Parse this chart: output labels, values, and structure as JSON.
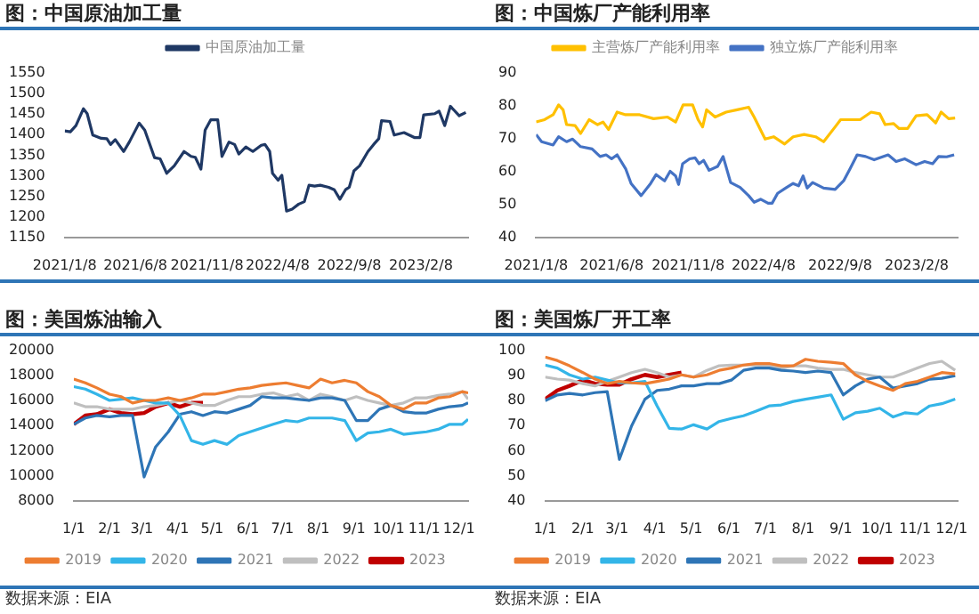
{
  "chart_data": [
    {
      "type": "line",
      "title": "图：中国原油加工量",
      "legend": "top",
      "xlim": [
        "2021-01-08",
        "2023-05-20"
      ],
      "xticks": [
        {
          "value": "2021-01-08",
          "label": "2021/1/8"
        },
        {
          "value": "2021-06-08",
          "label": "2021/6/8"
        },
        {
          "value": "2021-11-08",
          "label": "2021/11/8"
        },
        {
          "value": "2022-04-08",
          "label": "2022/4/8"
        },
        {
          "value": "2022-09-08",
          "label": "2022/9/8"
        },
        {
          "value": "2023-02-08",
          "label": "2023/2/8"
        }
      ],
      "ylim": [
        1150,
        1550
      ],
      "yticks": [
        1150,
        1200,
        1250,
        1300,
        1350,
        1400,
        1450,
        1500,
        1550
      ],
      "x": [
        "2021-01-08",
        "2021-01-20",
        "2021-02-01",
        "2021-02-17",
        "2021-02-25",
        "2021-03-09",
        "2021-03-27",
        "2021-04-08",
        "2021-04-16",
        "2021-04-26",
        "2021-05-14",
        "2021-05-26",
        "2021-06-16",
        "2021-06-28",
        "2021-07-19",
        "2021-07-31",
        "2021-08-14",
        "2021-08-30",
        "2021-09-20",
        "2021-10-05",
        "2021-10-14",
        "2021-10-26",
        "2021-11-04",
        "2021-11-16",
        "2021-12-01",
        "2021-12-10",
        "2021-12-25",
        "2022-01-06",
        "2022-01-15",
        "2022-01-30",
        "2022-02-14",
        "2022-03-04",
        "2022-03-12",
        "2022-03-22",
        "2022-03-28",
        "2022-04-09",
        "2022-04-17",
        "2022-04-27",
        "2022-05-09",
        "2022-05-23",
        "2022-06-04",
        "2022-06-14",
        "2022-06-26",
        "2022-07-08",
        "2022-07-26",
        "2022-08-07",
        "2022-08-19",
        "2022-08-31",
        "2022-09-08",
        "2022-09-18",
        "2022-09-30",
        "2022-10-18",
        "2022-10-30",
        "2022-11-10",
        "2022-11-16",
        "2022-12-04",
        "2022-12-13",
        "2023-01-03",
        "2023-01-25",
        "2023-02-06",
        "2023-02-14",
        "2023-03-10",
        "2023-03-19",
        "2023-03-31",
        "2023-04-12",
        "2023-05-01",
        "2023-05-15"
      ],
      "series": [
        {
          "name": "中国原油加工量",
          "color": "#1f3864",
          "values": [
            1409,
            1407,
            1422,
            1463,
            1451,
            1399,
            1391,
            1390,
            1376,
            1388,
            1359,
            1382,
            1428,
            1411,
            1344,
            1341,
            1306,
            1324,
            1359,
            1347,
            1345,
            1316,
            1411,
            1436,
            1436,
            1347,
            1382,
            1376,
            1353,
            1370,
            1359,
            1374,
            1376,
            1359,
            1306,
            1289,
            1301,
            1214,
            1219,
            1231,
            1237,
            1277,
            1275,
            1277,
            1272,
            1266,
            1243,
            1266,
            1272,
            1312,
            1324,
            1359,
            1376,
            1390,
            1434,
            1432,
            1399,
            1405,
            1393,
            1393,
            1448,
            1451,
            1457,
            1422,
            1469,
            1446,
            1454
          ]
        }
      ]
    },
    {
      "type": "line",
      "title": "图：中国炼厂产能利用率",
      "legend": "top",
      "xlim": [
        "2021-01-08",
        "2023-05-01"
      ],
      "xticks": [
        {
          "value": "2021-01-08",
          "label": "2021/1/8"
        },
        {
          "value": "2021-06-08",
          "label": "2021/6/8"
        },
        {
          "value": "2021-11-08",
          "label": "2021/11/8"
        },
        {
          "value": "2022-04-08",
          "label": "2022/4/8"
        },
        {
          "value": "2022-09-08",
          "label": "2022/9/8"
        },
        {
          "value": "2023-02-08",
          "label": "2023/2/8"
        }
      ],
      "ylim": [
        40,
        90
      ],
      "yticks": [
        40,
        50,
        60,
        70,
        80,
        90
      ],
      "series": [
        {
          "name": "主营炼厂产能利用率",
          "color": "#ffc000",
          "x": [
            "2021-01-08",
            "2021-01-25",
            "2021-02-11",
            "2021-02-22",
            "2021-03-03",
            "2021-03-10",
            "2021-03-27",
            "2021-04-07",
            "2021-04-24",
            "2021-05-11",
            "2021-05-22",
            "2021-06-02",
            "2021-06-19",
            "2021-07-06",
            "2021-08-03",
            "2021-08-31",
            "2021-09-28",
            "2021-10-14",
            "2021-10-29",
            "2021-11-17",
            "2021-11-28",
            "2021-12-07",
            "2021-12-15",
            "2022-01-01",
            "2022-01-23",
            "2022-02-14",
            "2022-03-09",
            "2022-03-20",
            "2022-04-11",
            "2022-04-28",
            "2022-05-20",
            "2022-06-06",
            "2022-06-28",
            "2022-07-21",
            "2022-08-06",
            "2022-08-29",
            "2022-09-09",
            "2022-10-18",
            "2022-11-09",
            "2022-11-26",
            "2022-12-07",
            "2022-12-24",
            "2023-01-04",
            "2023-01-21",
            "2023-02-07",
            "2023-03-01",
            "2023-03-18",
            "2023-03-29",
            "2023-04-13",
            "2023-04-26"
          ],
          "values": [
            75.1,
            75.8,
            77.3,
            80.3,
            78.8,
            74.3,
            74.0,
            71.6,
            75.8,
            74.3,
            75.1,
            72.8,
            78.1,
            77.3,
            77.3,
            76.1,
            76.6,
            75.1,
            80.3,
            80.3,
            75.8,
            73.6,
            78.8,
            76.6,
            78.1,
            78.8,
            79.6,
            76.6,
            69.9,
            70.6,
            68.4,
            70.6,
            71.3,
            70.6,
            69.1,
            73.6,
            75.8,
            75.8,
            78.1,
            77.6,
            74.3,
            74.6,
            73.1,
            73.1,
            77.0,
            77.3,
            74.8,
            78.1,
            76.1,
            76.3
          ]
        },
        {
          "name": "独立炼厂产能利用率",
          "color": "#4472c4",
          "x": [
            "2021-01-08",
            "2021-01-19",
            "2021-02-11",
            "2021-02-22",
            "2021-03-10",
            "2021-03-22",
            "2021-04-07",
            "2021-04-30",
            "2021-05-16",
            "2021-05-28",
            "2021-06-08",
            "2021-06-19",
            "2021-07-06",
            "2021-07-17",
            "2021-08-06",
            "2021-08-25",
            "2021-09-05",
            "2021-09-22",
            "2021-10-03",
            "2021-10-14",
            "2021-10-20",
            "2021-10-28",
            "2021-11-11",
            "2021-11-22",
            "2021-11-30",
            "2021-12-09",
            "2021-12-20",
            "2022-01-06",
            "2022-01-17",
            "2022-02-01",
            "2022-02-20",
            "2022-03-09",
            "2022-03-20",
            "2022-04-02",
            "2022-04-17",
            "2022-04-25",
            "2022-05-06",
            "2022-05-24",
            "2022-06-06",
            "2022-06-17",
            "2022-06-26",
            "2022-07-04",
            "2022-07-15",
            "2022-08-06",
            "2022-08-29",
            "2022-09-15",
            "2022-09-28",
            "2022-10-12",
            "2022-10-29",
            "2022-11-15",
            "2022-12-13",
            "2022-12-29",
            "2023-01-15",
            "2023-02-07",
            "2023-02-24",
            "2023-03-12",
            "2023-03-24",
            "2023-04-09",
            "2023-04-24"
          ],
          "values": [
            71.3,
            69.1,
            68.1,
            70.6,
            69.1,
            69.9,
            67.6,
            66.9,
            64.6,
            65.1,
            63.9,
            65.1,
            60.9,
            56.4,
            52.7,
            56.4,
            59.1,
            57.2,
            60.1,
            58.7,
            56.1,
            62.4,
            63.9,
            64.2,
            62.4,
            63.4,
            60.4,
            61.6,
            64.6,
            56.7,
            55.2,
            52.7,
            50.7,
            51.6,
            50.4,
            50.4,
            53.4,
            55.2,
            56.4,
            55.7,
            58.7,
            55.0,
            56.7,
            55.0,
            54.6,
            57.2,
            60.9,
            65.1,
            64.6,
            63.6,
            65.1,
            63.1,
            63.9,
            62.1,
            63.1,
            62.4,
            64.6,
            64.5,
            65.1
          ]
        }
      ]
    },
    {
      "type": "line",
      "title": "图：美国炼油输入",
      "legend": "bottom",
      "annotations": [
        "数据来源：EIA"
      ],
      "xlim": [
        "--01-01",
        "--12-09"
      ],
      "xticks": [
        {
          "value": "--01-01",
          "label": "1/1"
        },
        {
          "value": "--02-01",
          "label": "2/1"
        },
        {
          "value": "--03-01",
          "label": "3/1"
        },
        {
          "value": "--04-01",
          "label": "4/1"
        },
        {
          "value": "--05-01",
          "label": "5/1"
        },
        {
          "value": "--06-01",
          "label": "6/1"
        },
        {
          "value": "--07-01",
          "label": "7/1"
        },
        {
          "value": "--08-01",
          "label": "8/1"
        },
        {
          "value": "--09-01",
          "label": "9/1"
        },
        {
          "value": "--10-01",
          "label": "10/1"
        },
        {
          "value": "--11-01",
          "label": "11/1"
        },
        {
          "value": "--12-01",
          "label": "12/1"
        }
      ],
      "ylim": [
        8000,
        20000
      ],
      "yticks": [
        8000,
        10000,
        12000,
        14000,
        16000,
        18000,
        20000
      ],
      "x": [
        "--01-01",
        "--01-11",
        "--01-21",
        "--02-01",
        "--02-11",
        "--02-21",
        "--03-03",
        "--03-13",
        "--03-24",
        "--04-03",
        "--04-13",
        "--04-23",
        "--05-03",
        "--05-14",
        "--05-24",
        "--06-03",
        "--06-13",
        "--06-23",
        "--07-04",
        "--07-14",
        "--07-24",
        "--08-03",
        "--08-13",
        "--08-24",
        "--09-03",
        "--09-13",
        "--09-23",
        "--10-03",
        "--10-14",
        "--10-24",
        "--11-03",
        "--11-13",
        "--11-23",
        "--12-04",
        "--12-09"
      ],
      "series": [
        {
          "name": "2019",
          "color": "#ed7d31",
          "values": [
            17700,
            17400,
            17000,
            16500,
            16300,
            15800,
            16000,
            16000,
            16200,
            16000,
            16200,
            16500,
            16500,
            16700,
            16900,
            17000,
            17200,
            17300,
            17400,
            17200,
            17000,
            17700,
            17400,
            17600,
            17400,
            16700,
            16300,
            15600,
            15300,
            15800,
            15800,
            16200,
            16300,
            16700,
            16600
          ]
        },
        {
          "name": "2020",
          "color": "#33b5e8",
          "values": [
            17100,
            16900,
            16500,
            16000,
            16100,
            16200,
            16000,
            15800,
            15800,
            14800,
            12800,
            12500,
            12800,
            12500,
            13200,
            13500,
            13800,
            14100,
            14400,
            14300,
            14600,
            14600,
            14600,
            14400,
            12800,
            13400,
            13500,
            13700,
            13300,
            13400,
            13500,
            13700,
            14100,
            14100,
            14500
          ]
        },
        {
          "name": "2021",
          "color": "#2e75b6",
          "values": [
            14100,
            14600,
            14800,
            14700,
            14800,
            14800,
            9900,
            12300,
            13500,
            14900,
            15100,
            14800,
            15100,
            15000,
            15300,
            15600,
            16300,
            16200,
            16200,
            16100,
            16000,
            16200,
            16200,
            16000,
            14400,
            14400,
            15300,
            15600,
            15100,
            15000,
            15000,
            15300,
            15500,
            15600,
            15800
          ]
        },
        {
          "name": "2022",
          "color": "#bfbfbf",
          "values": [
            15800,
            15500,
            15500,
            15300,
            15300,
            15300,
            15500,
            15600,
            15800,
            16000,
            15800,
            15600,
            15600,
            16000,
            16300,
            16300,
            16500,
            16600,
            16300,
            16500,
            16000,
            16500,
            16300,
            16000,
            16300,
            16000,
            15800,
            15600,
            15800,
            16200,
            16200,
            16400,
            16500,
            16700,
            16100
          ]
        },
        {
          "name": "2023",
          "color": "#c00000",
          "values": [
            14100,
            14800,
            14900,
            15300,
            15000,
            14900,
            15000,
            15500,
            15800,
            15500,
            15800,
            15800,
            null,
            null,
            null,
            null,
            null,
            null,
            null,
            null,
            null,
            null,
            null,
            null,
            null,
            null,
            null,
            null,
            null,
            null,
            null,
            null,
            null,
            null,
            null
          ]
        }
      ]
    },
    {
      "type": "line",
      "title": "图：美国炼厂开工率",
      "legend": "bottom",
      "annotations": [
        "数据来源：EIA"
      ],
      "xlim": [
        "--01-01",
        "--12-06"
      ],
      "xticks": [
        {
          "value": "--01-01",
          "label": "1/1"
        },
        {
          "value": "--02-01",
          "label": "2/1"
        },
        {
          "value": "--03-01",
          "label": "3/1"
        },
        {
          "value": "--04-01",
          "label": "4/1"
        },
        {
          "value": "--05-01",
          "label": "5/1"
        },
        {
          "value": "--06-01",
          "label": "6/1"
        },
        {
          "value": "--07-01",
          "label": "7/1"
        },
        {
          "value": "--08-01",
          "label": "8/1"
        },
        {
          "value": "--09-01",
          "label": "9/1"
        },
        {
          "value": "--10-01",
          "label": "10/1"
        },
        {
          "value": "--11-01",
          "label": "11/1"
        },
        {
          "value": "--12-01",
          "label": "12/1"
        }
      ],
      "ylim": [
        40,
        100
      ],
      "yticks": [
        40,
        50,
        60,
        70,
        80,
        90,
        100
      ],
      "x": [
        "--01-01",
        "--01-11",
        "--01-21",
        "--02-01",
        "--02-11",
        "--02-21",
        "--03-03",
        "--03-13",
        "--03-24",
        "--04-03",
        "--04-13",
        "--04-23",
        "--05-03",
        "--05-14",
        "--05-24",
        "--06-03",
        "--06-13",
        "--06-23",
        "--07-04",
        "--07-14",
        "--07-24",
        "--08-03",
        "--08-13",
        "--08-24",
        "--09-03",
        "--09-13",
        "--09-23",
        "--10-03",
        "--10-14",
        "--10-24",
        "--11-03",
        "--11-13",
        "--11-23",
        "--12-04"
      ],
      "series": [
        {
          "name": "2019",
          "color": "#ed7d31",
          "values": [
            97.3,
            95.9,
            93.8,
            91.1,
            88.5,
            86.7,
            87.6,
            87.0,
            86.7,
            87.6,
            88.5,
            90.2,
            89.3,
            90.2,
            92.0,
            92.9,
            94.1,
            94.7,
            94.7,
            93.8,
            93.8,
            96.4,
            95.6,
            95.2,
            94.7,
            90.2,
            87.6,
            85.8,
            84.0,
            86.7,
            87.6,
            89.3,
            91.1,
            90.6
          ]
        },
        {
          "name": "2020",
          "color": "#33b5e8",
          "values": [
            94.1,
            92.9,
            90.2,
            88.5,
            89.3,
            88.1,
            87.0,
            87.0,
            87.6,
            77.8,
            68.9,
            68.6,
            70.3,
            68.6,
            71.6,
            72.8,
            73.9,
            75.7,
            77.8,
            78.2,
            79.6,
            80.5,
            81.3,
            82.2,
            72.5,
            75.1,
            75.7,
            76.9,
            73.4,
            75.1,
            74.6,
            77.8,
            78.7,
            80.5
          ]
        },
        {
          "name": "2021",
          "color": "#2e75b6",
          "values": [
            79.9,
            82.2,
            82.8,
            82.2,
            83.1,
            83.5,
            56.5,
            69.8,
            80.5,
            84.0,
            84.5,
            85.8,
            85.8,
            86.7,
            86.7,
            88.1,
            92.0,
            92.9,
            92.9,
            92.0,
            91.7,
            91.1,
            91.7,
            91.1,
            82.2,
            85.8,
            88.5,
            89.3,
            84.9,
            85.8,
            86.7,
            88.5,
            88.8,
            89.9
          ]
        },
        {
          "name": "2022",
          "color": "#bfbfbf",
          "values": [
            89.3,
            88.5,
            88.1,
            86.7,
            85.8,
            87.6,
            89.3,
            91.1,
            92.4,
            91.1,
            89.3,
            90.2,
            89.3,
            92.0,
            93.8,
            94.1,
            94.1,
            94.1,
            93.8,
            92.9,
            93.8,
            93.8,
            92.9,
            92.4,
            92.4,
            91.1,
            90.2,
            89.3,
            89.3,
            91.1,
            92.9,
            94.7,
            95.6,
            92.0
          ]
        },
        {
          "name": "2023",
          "color": "#c00000",
          "values": [
            80.5,
            84.0,
            85.8,
            88.1,
            86.7,
            86.3,
            86.3,
            88.5,
            90.2,
            89.3,
            90.2,
            91.1,
            null,
            null,
            null,
            null,
            null,
            null,
            null,
            null,
            null,
            null,
            null,
            null,
            null,
            null,
            null,
            null,
            null,
            null,
            null,
            null,
            null,
            null
          ]
        }
      ]
    }
  ]
}
